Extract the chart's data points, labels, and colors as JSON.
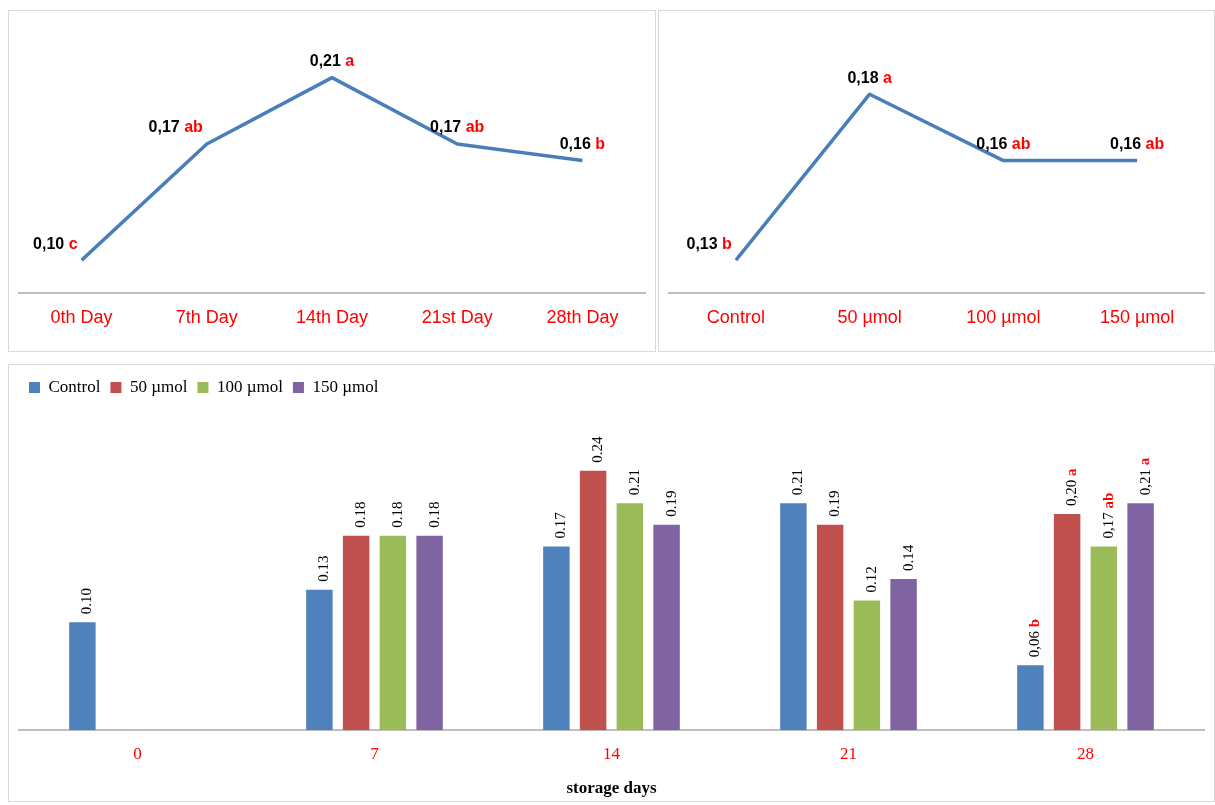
{
  "chart_data": [
    {
      "type": "line",
      "categories": [
        "0th Day",
        "7th Day",
        "14th Day",
        "21st Day",
        "28th Day"
      ],
      "marker": "none",
      "series": [
        {
          "color": "#4a7ebb",
          "values": [
            0.1,
            0.17,
            0.21,
            0.17,
            0.16
          ],
          "value_labels": [
            "0,10 c",
            "0,17 ab",
            "0,21 a",
            "0,17 ab",
            "0,16 b"
          ]
        }
      ]
    },
    {
      "type": "line",
      "categories": [
        "Control",
        "50 µmol",
        "100 µmol",
        "150 µmol"
      ],
      "marker": "none",
      "series": [
        {
          "color": "#4a7ebb",
          "values": [
            0.13,
            0.18,
            0.16,
            0.16
          ],
          "value_labels": [
            "0,13 b",
            "0,18 a",
            "0,16 ab",
            "0,16 ab"
          ]
        }
      ]
    },
    {
      "type": "bar",
      "xlabel": "storage days",
      "categories": [
        "0",
        "7",
        "14",
        "21",
        "28"
      ],
      "legend": "top left",
      "series": [
        {
          "name": "Control",
          "color": "#4f81bd",
          "values": [
            0.1,
            0.13,
            0.17,
            0.21,
            0.06
          ],
          "value_labels": [
            "0.10",
            "0.13",
            "0.17",
            "0.21",
            "0,06 b"
          ]
        },
        {
          "name": "50 µmol",
          "color": "#c0504d",
          "values": [
            null,
            0.18,
            0.24,
            0.19,
            0.2
          ],
          "value_labels": [
            null,
            "0.18",
            "0.24",
            "0.19",
            "0,20 a"
          ]
        },
        {
          "name": "100 µmol",
          "color": "#9bbb59",
          "values": [
            null,
            0.18,
            0.21,
            0.12,
            0.17
          ],
          "value_labels": [
            null,
            "0.18",
            "0.21",
            "0.12",
            "0,17 ab"
          ]
        },
        {
          "name": "150 µmol",
          "color": "#8064a2",
          "values": [
            null,
            0.18,
            0.19,
            0.14,
            0.21
          ],
          "value_labels": [
            null,
            "0.18",
            "0.19",
            "0.14",
            "0,21 a"
          ]
        }
      ]
    }
  ]
}
